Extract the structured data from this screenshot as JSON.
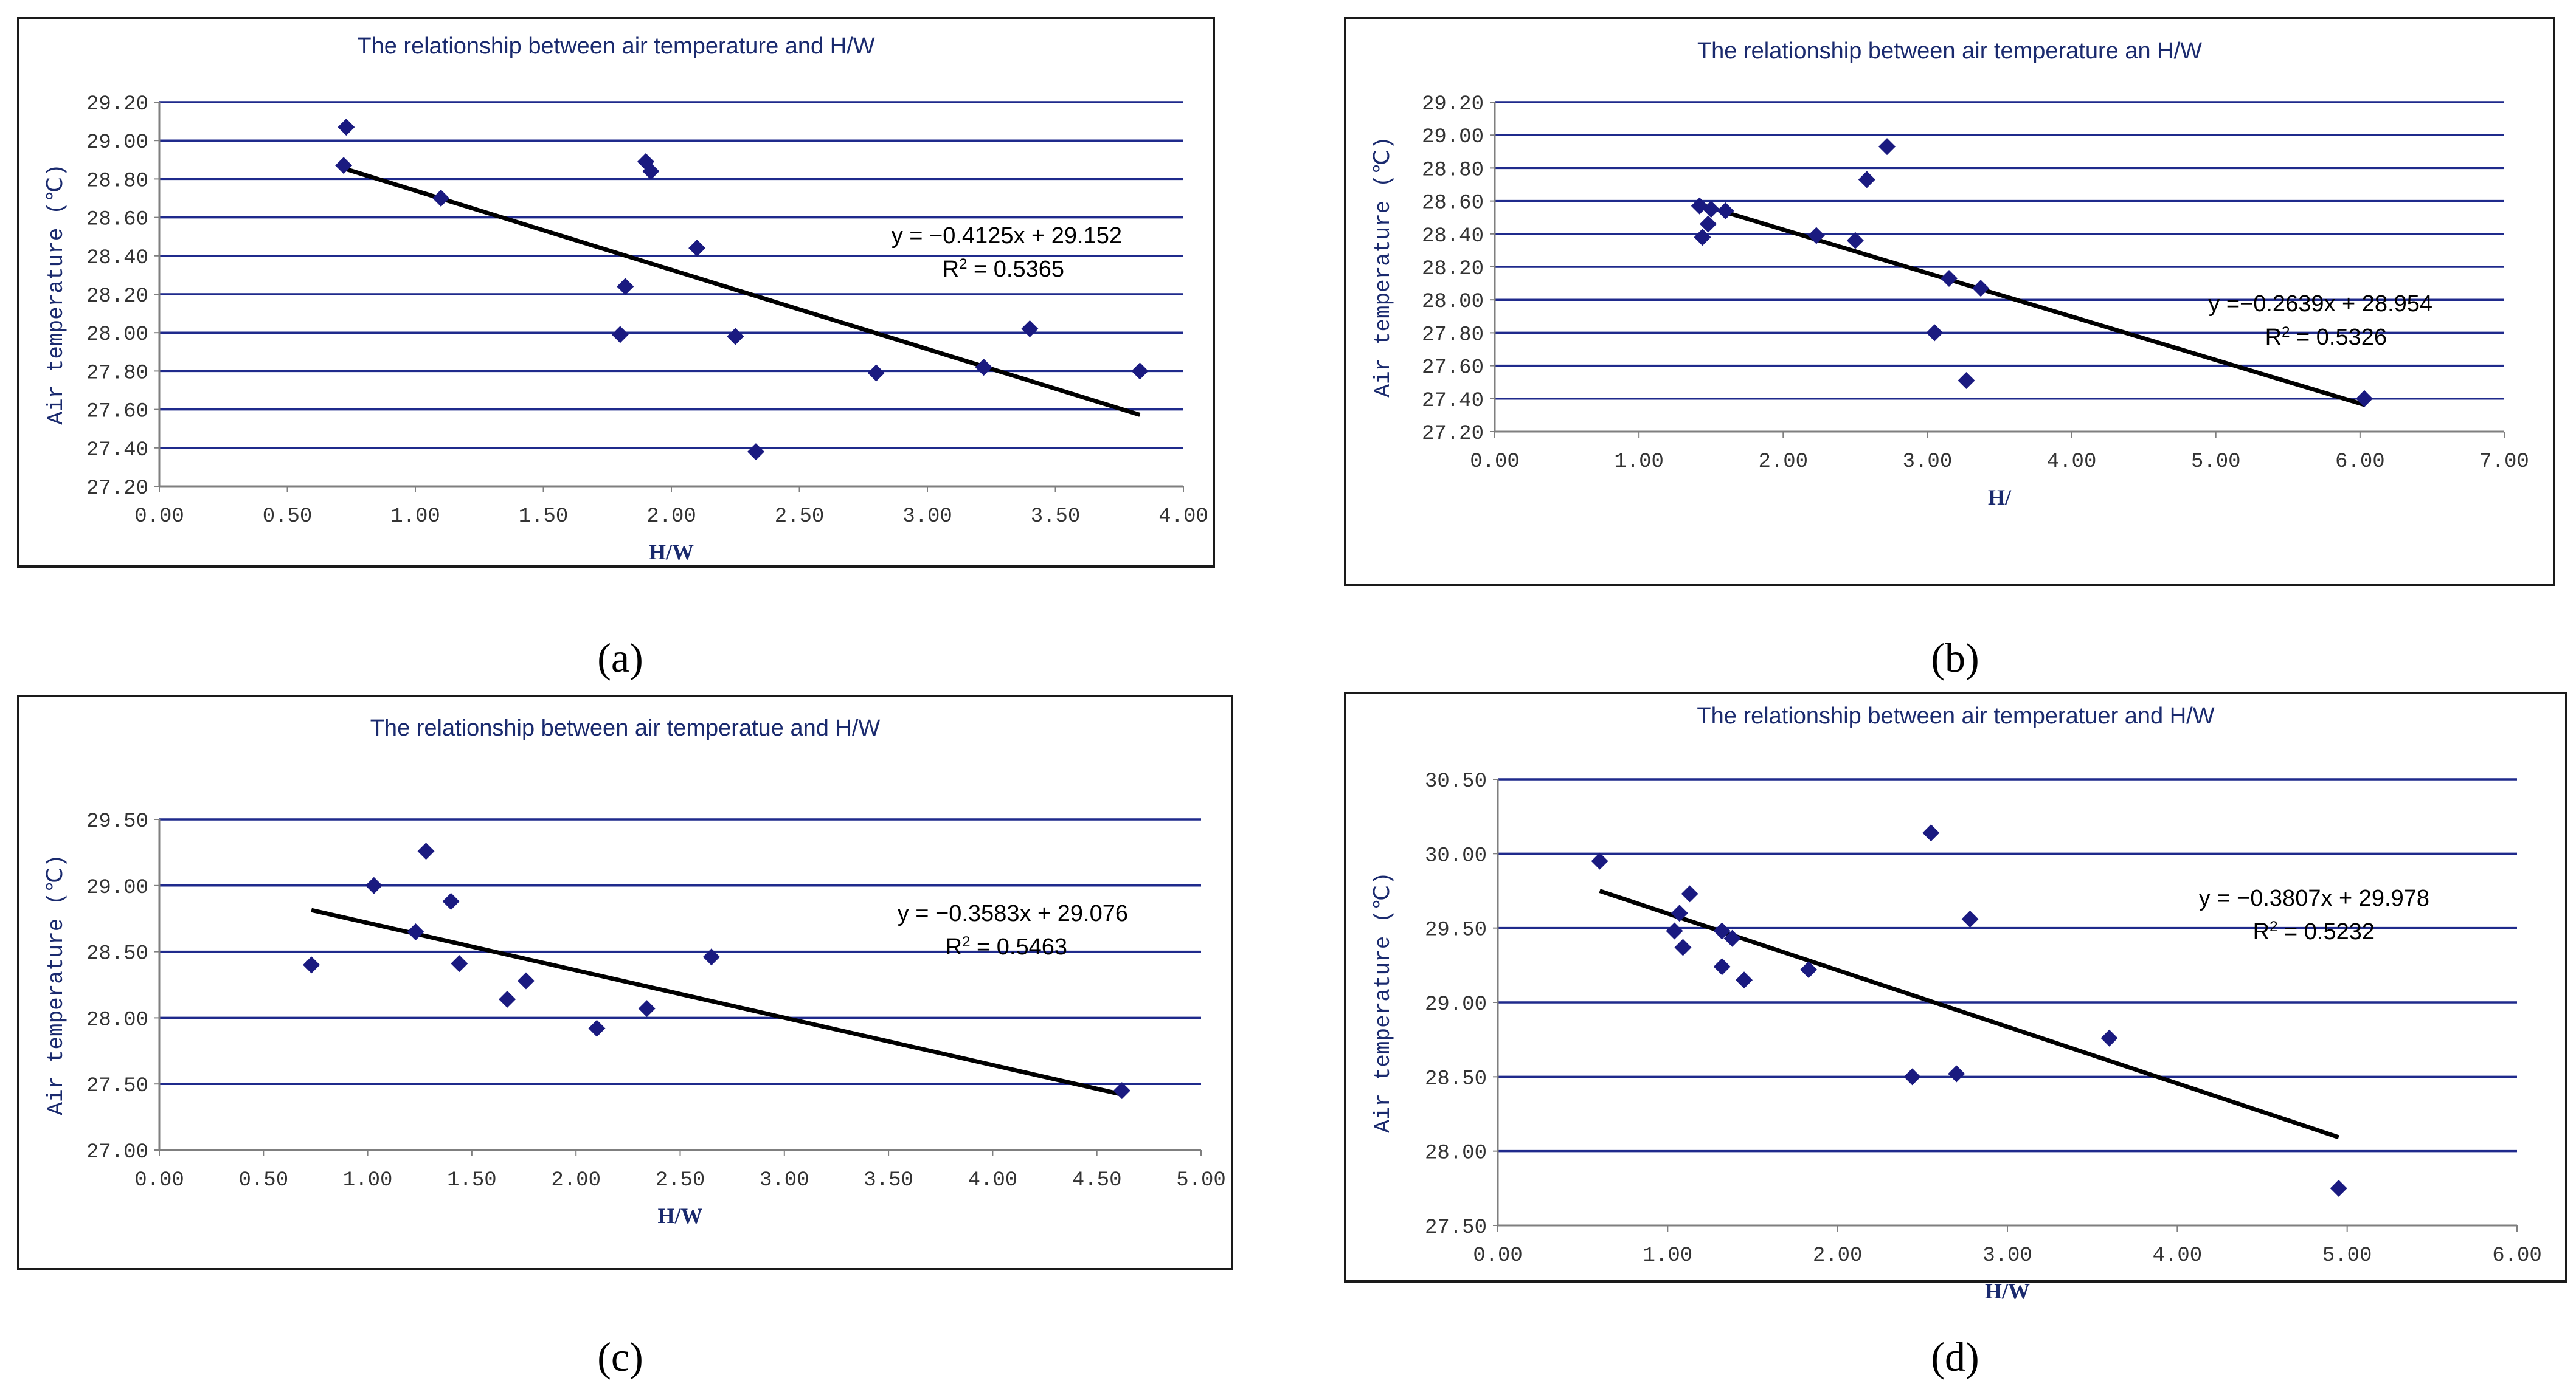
{
  "chart_data": [
    {
      "type": "scatter",
      "panel_label": "(a)",
      "title": "The relationship between air temperature and H/W",
      "xlabel": "H/W",
      "ylabel": "Air temperature (℃)",
      "xlim": [
        0,
        4
      ],
      "xticks": [
        0,
        0.5,
        1,
        1.5,
        2,
        2.5,
        3,
        3.5,
        4
      ],
      "xtick_labels": [
        "0.00",
        "0.50",
        "1.00",
        "1.50",
        "2.00",
        "2.50",
        "3.00",
        "3.50",
        "4.00"
      ],
      "ylim": [
        27.2,
        29.2
      ],
      "yticks": [
        27.2,
        27.4,
        27.6,
        27.8,
        28.0,
        28.2,
        28.4,
        28.6,
        28.8,
        29.0,
        29.2
      ],
      "ytick_labels": [
        "27.20",
        "27.40",
        "27.60",
        "27.80",
        "28.00",
        "28.20",
        "28.40",
        "28.60",
        "28.80",
        "29.00",
        "29.20"
      ],
      "points": [
        [
          0.73,
          29.07
        ],
        [
          0.72,
          28.87
        ],
        [
          1.1,
          28.7
        ],
        [
          1.9,
          28.89
        ],
        [
          1.92,
          28.84
        ],
        [
          2.1,
          28.44
        ],
        [
          1.82,
          28.24
        ],
        [
          1.8,
          27.99
        ],
        [
          2.25,
          27.98
        ],
        [
          2.33,
          27.38
        ],
        [
          2.8,
          27.79
        ],
        [
          3.22,
          27.82
        ],
        [
          3.4,
          28.02
        ],
        [
          3.83,
          27.8
        ]
      ],
      "trendline": {
        "slope": -0.4125,
        "intercept": 29.152,
        "x_range": [
          0.72,
          3.83
        ]
      },
      "equation": "y = −0.4125x + 29.152",
      "r2_prefix": "R",
      "r2_value": " = 0.5365"
    },
    {
      "type": "scatter",
      "panel_label": "(b)",
      "title": "The relationship between air temperature an H/W",
      "xlabel": "H/",
      "ylabel": "Air temperature (℃)",
      "xlim": [
        0,
        7
      ],
      "xticks": [
        0,
        1,
        2,
        3,
        4,
        5,
        6,
        7
      ],
      "xtick_labels": [
        "0.00",
        "1.00",
        "2.00",
        "3.00",
        "4.00",
        "5.00",
        "6.00",
        "7.00"
      ],
      "ylim": [
        27.2,
        29.2
      ],
      "yticks": [
        27.2,
        27.4,
        27.6,
        27.8,
        28.0,
        28.2,
        28.4,
        28.6,
        28.8,
        29.0,
        29.2
      ],
      "ytick_labels": [
        "27.20",
        "27.40",
        "27.60",
        "27.80",
        "28.00",
        "28.20",
        "28.40",
        "28.60",
        "28.80",
        "29.00",
        "29.20"
      ],
      "points": [
        [
          1.42,
          28.57
        ],
        [
          1.5,
          28.55
        ],
        [
          1.6,
          28.54
        ],
        [
          1.48,
          28.46
        ],
        [
          1.44,
          28.38
        ],
        [
          2.23,
          28.39
        ],
        [
          2.5,
          28.36
        ],
        [
          2.58,
          28.73
        ],
        [
          2.72,
          28.93
        ],
        [
          3.15,
          28.13
        ],
        [
          3.37,
          28.07
        ],
        [
          3.05,
          27.8
        ],
        [
          3.27,
          27.51
        ],
        [
          6.03,
          27.4
        ]
      ],
      "trendline": {
        "slope": -0.2639,
        "intercept": 28.954,
        "x_range": [
          1.42,
          6.03
        ]
      },
      "equation": "y =−0.2639x + 28.954",
      "r2_prefix": "R",
      "r2_value": " = 0.5326"
    },
    {
      "type": "scatter",
      "panel_label": "(c)",
      "title": "The relationship between air temperatue and H/W",
      "xlabel": "H/W",
      "ylabel": "Air temperature (℃)",
      "xlim": [
        0,
        5
      ],
      "xticks": [
        0,
        0.5,
        1,
        1.5,
        2,
        2.5,
        3,
        3.5,
        4,
        4.5,
        5
      ],
      "xtick_labels": [
        "0.00",
        "0.50",
        "1.00",
        "1.50",
        "2.00",
        "2.50",
        "3.00",
        "3.50",
        "4.00",
        "4.50",
        "5.00"
      ],
      "ylim": [
        27.0,
        29.5
      ],
      "yticks": [
        27.0,
        27.5,
        28.0,
        28.5,
        29.0,
        29.5
      ],
      "ytick_labels": [
        "27.00",
        "27.50",
        "28.00",
        "28.50",
        "29.00",
        "29.50"
      ],
      "points": [
        [
          0.73,
          28.4
        ],
        [
          1.03,
          29.0
        ],
        [
          1.28,
          29.26
        ],
        [
          1.4,
          28.88
        ],
        [
          1.23,
          28.65
        ],
        [
          1.44,
          28.41
        ],
        [
          1.67,
          28.14
        ],
        [
          1.76,
          28.28
        ],
        [
          2.1,
          27.92
        ],
        [
          2.34,
          28.07
        ],
        [
          2.65,
          28.46
        ],
        [
          4.62,
          27.45
        ]
      ],
      "trendline": {
        "slope": -0.3583,
        "intercept": 29.076,
        "x_range": [
          0.73,
          4.62
        ]
      },
      "equation": "y = −0.3583x + 29.076",
      "r2_prefix": "R",
      "r2_value": " = 0.5463"
    },
    {
      "type": "scatter",
      "panel_label": "(d)",
      "title": "The relationship between air temperatuer and H/W",
      "xlabel": "H/W",
      "ylabel": "Air temperature (℃)",
      "xlim": [
        0,
        6
      ],
      "xticks": [
        0,
        1,
        2,
        3,
        4,
        5,
        6
      ],
      "xtick_labels": [
        "0.00",
        "1.00",
        "2.00",
        "3.00",
        "4.00",
        "5.00",
        "6.00"
      ],
      "ylim": [
        27.5,
        30.5
      ],
      "yticks": [
        27.5,
        28.0,
        28.5,
        29.0,
        29.5,
        30.0,
        30.5
      ],
      "ytick_labels": [
        "27.50",
        "28.00",
        "28.50",
        "29.00",
        "29.50",
        "30.00",
        "30.50"
      ],
      "points": [
        [
          0.6,
          29.95
        ],
        [
          1.13,
          29.73
        ],
        [
          1.07,
          29.6
        ],
        [
          1.04,
          29.48
        ],
        [
          1.09,
          29.37
        ],
        [
          1.32,
          29.48
        ],
        [
          1.38,
          29.43
        ],
        [
          1.32,
          29.24
        ],
        [
          1.45,
          29.15
        ],
        [
          1.83,
          29.22
        ],
        [
          2.55,
          30.14
        ],
        [
          2.78,
          29.56
        ],
        [
          2.44,
          28.5
        ],
        [
          2.7,
          28.52
        ],
        [
          3.6,
          28.76
        ],
        [
          4.95,
          27.75
        ]
      ],
      "trendline": {
        "slope": -0.3807,
        "intercept": 29.978,
        "x_range": [
          0.6,
          4.95
        ]
      },
      "equation": "y = −0.3807x + 29.978",
      "r2_prefix": "R",
      "r2_value": " = 0.5232"
    }
  ],
  "style": {
    "marker_color": "#1a1a80",
    "grid_color": "#1f2a8c",
    "axis_color": "#7f7f7f",
    "trend_color": "#000000",
    "border_color": "#1a1a1a",
    "title_color": "#1a2a6e",
    "tick_color": "#333333",
    "background": "#ffffff"
  }
}
